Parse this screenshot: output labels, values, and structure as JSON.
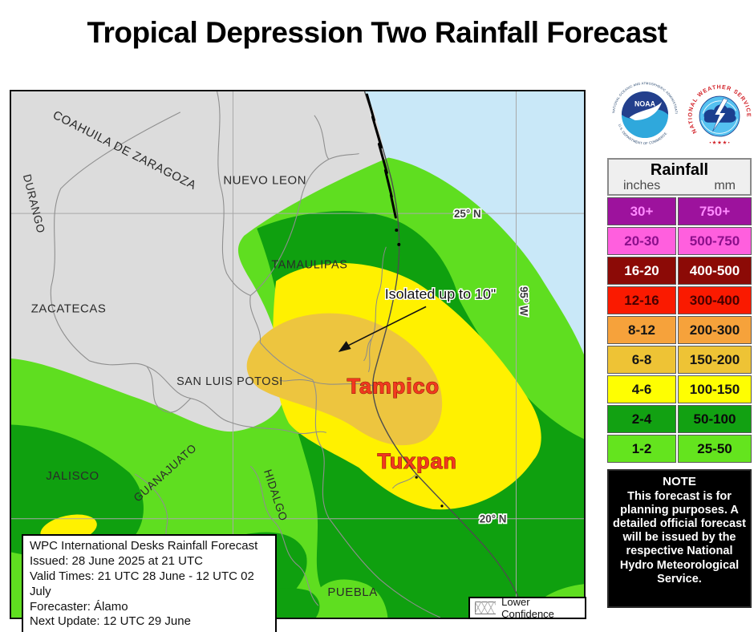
{
  "title": "Tropical Depression Two Rainfall Forecast",
  "map": {
    "states": [
      "COAHUILA DE ZARAGOZA",
      "DURANGO",
      "NUEVO LEON",
      "TAMAULIPAS",
      "ZACATECAS",
      "SAN LUIS POTOSI",
      "GUANAJUATO",
      "JALISCO",
      "HIDALGO",
      "PUEBLA"
    ],
    "cities": [
      "Tampico",
      "Tuxpan"
    ],
    "grid_labels": [
      "25° N",
      "20° N",
      "95° W"
    ],
    "annotation": "Isolated up to 10\"",
    "info_box": {
      "lines": [
        "WPC International Desks Rainfall Forecast",
        "Issued: 28 June 2025 at 21 UTC",
        "Valid Times: 21 UTC 28 June - 12 UTC 02 July",
        "Forecaster: Álamo",
        "Next Update: 12 UTC 29 June"
      ]
    },
    "lower_confidence_label": "Lower Confidence",
    "colors": {
      "ocean": "#C9E8F8",
      "land": "#DCDCDC",
      "rain_1_2": "#5FDE20",
      "rain_2_4": "#0FA00F",
      "rain_4_6": "#FFF100",
      "rain_6_8": "#EDC53F"
    }
  },
  "logos": {
    "noaa_name": "NOAA",
    "noaa_top": "NATIONAL OCEANIC AND ATMOSPHERIC ADMINISTRATION",
    "noaa_bottom": "U.S. DEPARTMENT OF COMMERCE",
    "nws_ring": "NATIONAL WEATHER SERVICE",
    "nws_stars": "• ★ ★ ★ •"
  },
  "legend": {
    "title": "Rainfall",
    "col_inches": "inches",
    "col_mm": "mm",
    "rows": [
      {
        "inches": "30+",
        "mm": "750+",
        "bg": "#9D129D",
        "fg": "#FF8AFF"
      },
      {
        "inches": "20-30",
        "mm": "500-750",
        "bg": "#FF5FDE",
        "fg": "#8B0F8B"
      },
      {
        "inches": "16-20",
        "mm": "400-500",
        "bg": "#8C0A06",
        "fg": "#FFFFFF"
      },
      {
        "inches": "12-16",
        "mm": "300-400",
        "bg": "#FA1A00",
        "fg": "#460000"
      },
      {
        "inches": "8-12",
        "mm": "200-300",
        "bg": "#F6A23B",
        "fg": "#151515"
      },
      {
        "inches": "6-8",
        "mm": "150-200",
        "bg": "#EEC335",
        "fg": "#151515"
      },
      {
        "inches": "4-6",
        "mm": "100-150",
        "bg": "#FEFE02",
        "fg": "#151515"
      },
      {
        "inches": "2-4",
        "mm": "50-100",
        "bg": "#12A112",
        "fg": "#0A0A0A"
      },
      {
        "inches": "1-2",
        "mm": "25-50",
        "bg": "#64E41E",
        "fg": "#0A0A0A"
      }
    ]
  },
  "note": {
    "heading": "NOTE",
    "body": "This forecast is for planning purposes. A detailed official forecast will be issued by the respective National Hydro Meteorological Service."
  }
}
